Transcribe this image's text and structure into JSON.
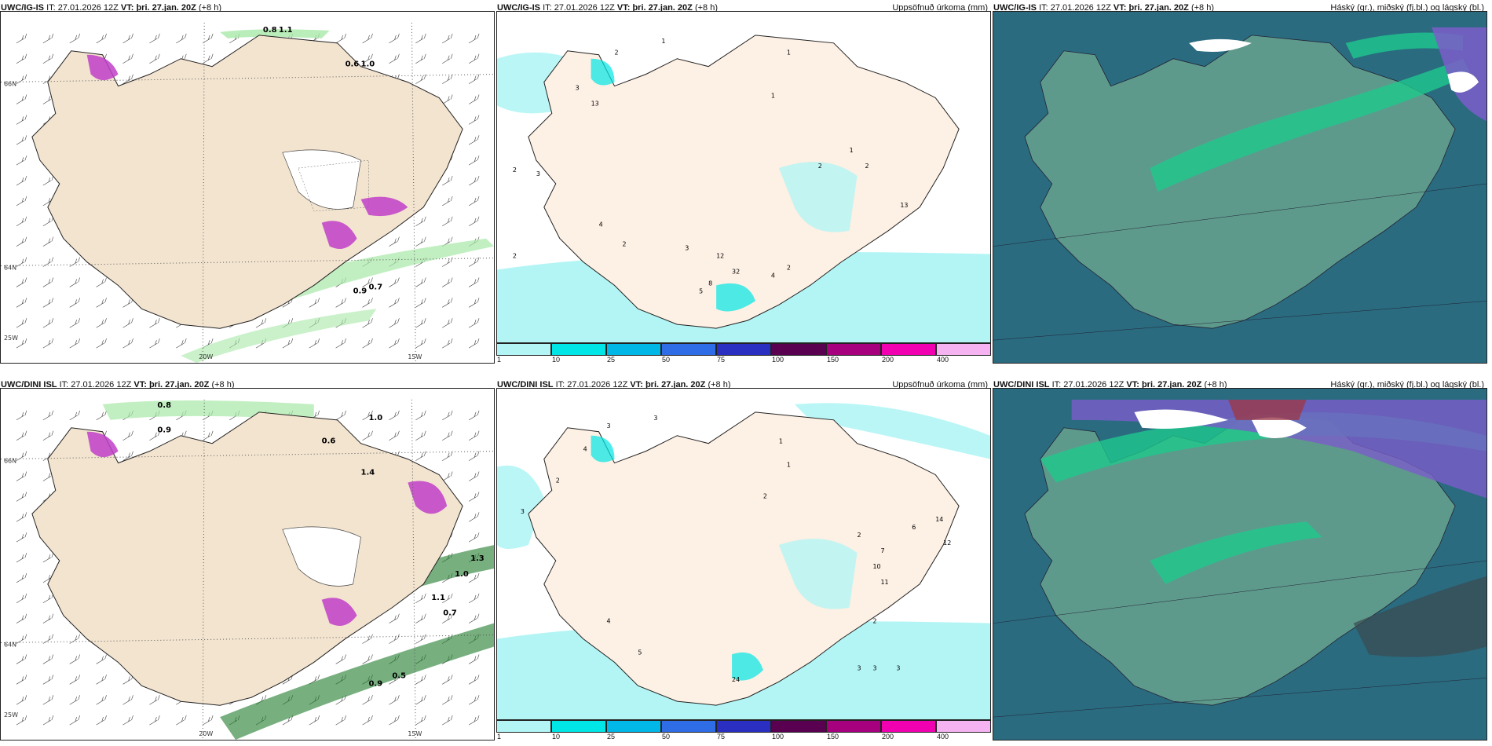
{
  "panels": [
    {
      "model": "UWC/IG-IS",
      "it_label": "IT:",
      "it_value": "27.01.2026 12Z",
      "vt_label": "VT:",
      "vt_value": "þri. 27.jan. 20Z",
      "lead": "(+8 h)",
      "right_title": ""
    },
    {
      "model": "UWC/IG-IS",
      "it_label": "IT:",
      "it_value": "27.01.2026 12Z",
      "vt_label": "VT:",
      "vt_value": "þri. 27.jan. 20Z",
      "lead": "(+8 h)",
      "right_title": "Uppsöfnuð úrkoma (mm)"
    },
    {
      "model": "UWC/IG-IS",
      "it_label": "IT:",
      "it_value": "27.01.2026 12Z",
      "vt_label": "VT:",
      "vt_value": "þri. 27.jan. 20Z",
      "lead": "(+8 h)",
      "right_title": "Háský (gr.), miðský (fj.bl.) og lágský (bl.)"
    },
    {
      "model": "UWC/DINI ISL",
      "it_label": "IT:",
      "it_value": "27.01.2026 12Z",
      "vt_label": "VT:",
      "vt_value": "þri. 27.jan. 20Z",
      "lead": "(+8 h)",
      "right_title": ""
    },
    {
      "model": "UWC/DINI ISL",
      "it_label": "IT:",
      "it_value": "27.01.2026 12Z",
      "vt_label": "VT:",
      "vt_value": "þri. 27.jan. 20Z",
      "lead": "(+8 h)",
      "right_title": "Uppsöfnuð úrkoma (mm)"
    },
    {
      "model": "UWC/DINI ISL",
      "it_label": "IT:",
      "it_value": "27.01.2026 12Z",
      "vt_label": "VT:",
      "vt_value": "þri. 27.jan. 20Z",
      "lead": "(+8 h)",
      "right_title": "Háský (gr.), miðský (fj.bl.) og lágský (bl.)"
    }
  ],
  "axis_labels": {
    "lon_20": "20W",
    "lon_15": "15W",
    "lat_66": "66N",
    "lat_64": "64N",
    "lon_25": "25W"
  },
  "precip_legend": {
    "labels": [
      "1",
      "10",
      "25",
      "50",
      "75",
      "100",
      "150",
      "200",
      "400"
    ],
    "colors": [
      "#b3f5f5",
      "#00e5e5",
      "#00b7e8",
      "#2e6de6",
      "#2a2fc2",
      "#5a0050",
      "#a6007f",
      "#f000b0",
      "#f5b3f2"
    ]
  },
  "colors": {
    "land": "#f3e4d0",
    "land_precip": "#fdf0e4",
    "sea": "#ffffff",
    "precip_light": "#b3f5f5",
    "green": "#a7e8a7",
    "green_dark": "#1d7a2a",
    "magenta": "#c040c8",
    "cloud_sea": "#2a6b80",
    "cloud_land": "#5e9a8c",
    "cloud_low": "#1ec88c",
    "cloud_mid": "#7b5dc9",
    "cloud_high": "#ffffff"
  },
  "wind_values_top": [
    "0.8",
    "1.1",
    "0.6",
    "1.0",
    "0.9",
    "0.7"
  ],
  "wind_values_bottom": [
    "0.8",
    "0.9",
    "1.0",
    "0.6",
    "0.7",
    "1.4",
    "1.1",
    "1.0",
    "0.5",
    "0.9",
    "1.3"
  ],
  "precip_values_top": [
    "2",
    "3",
    "3",
    "13",
    "2",
    "1",
    "1",
    "2",
    "4",
    "2",
    "2",
    "12",
    "32",
    "8",
    "5",
    "4",
    "13",
    "2",
    "1",
    "1",
    "2",
    "3"
  ],
  "precip_values_bottom": [
    "3",
    "2",
    "4",
    "3",
    "3",
    "1",
    "1",
    "2",
    "2",
    "14",
    "12",
    "6",
    "7",
    "10",
    "11",
    "24",
    "4",
    "5",
    "2",
    "3",
    "3",
    "3"
  ]
}
